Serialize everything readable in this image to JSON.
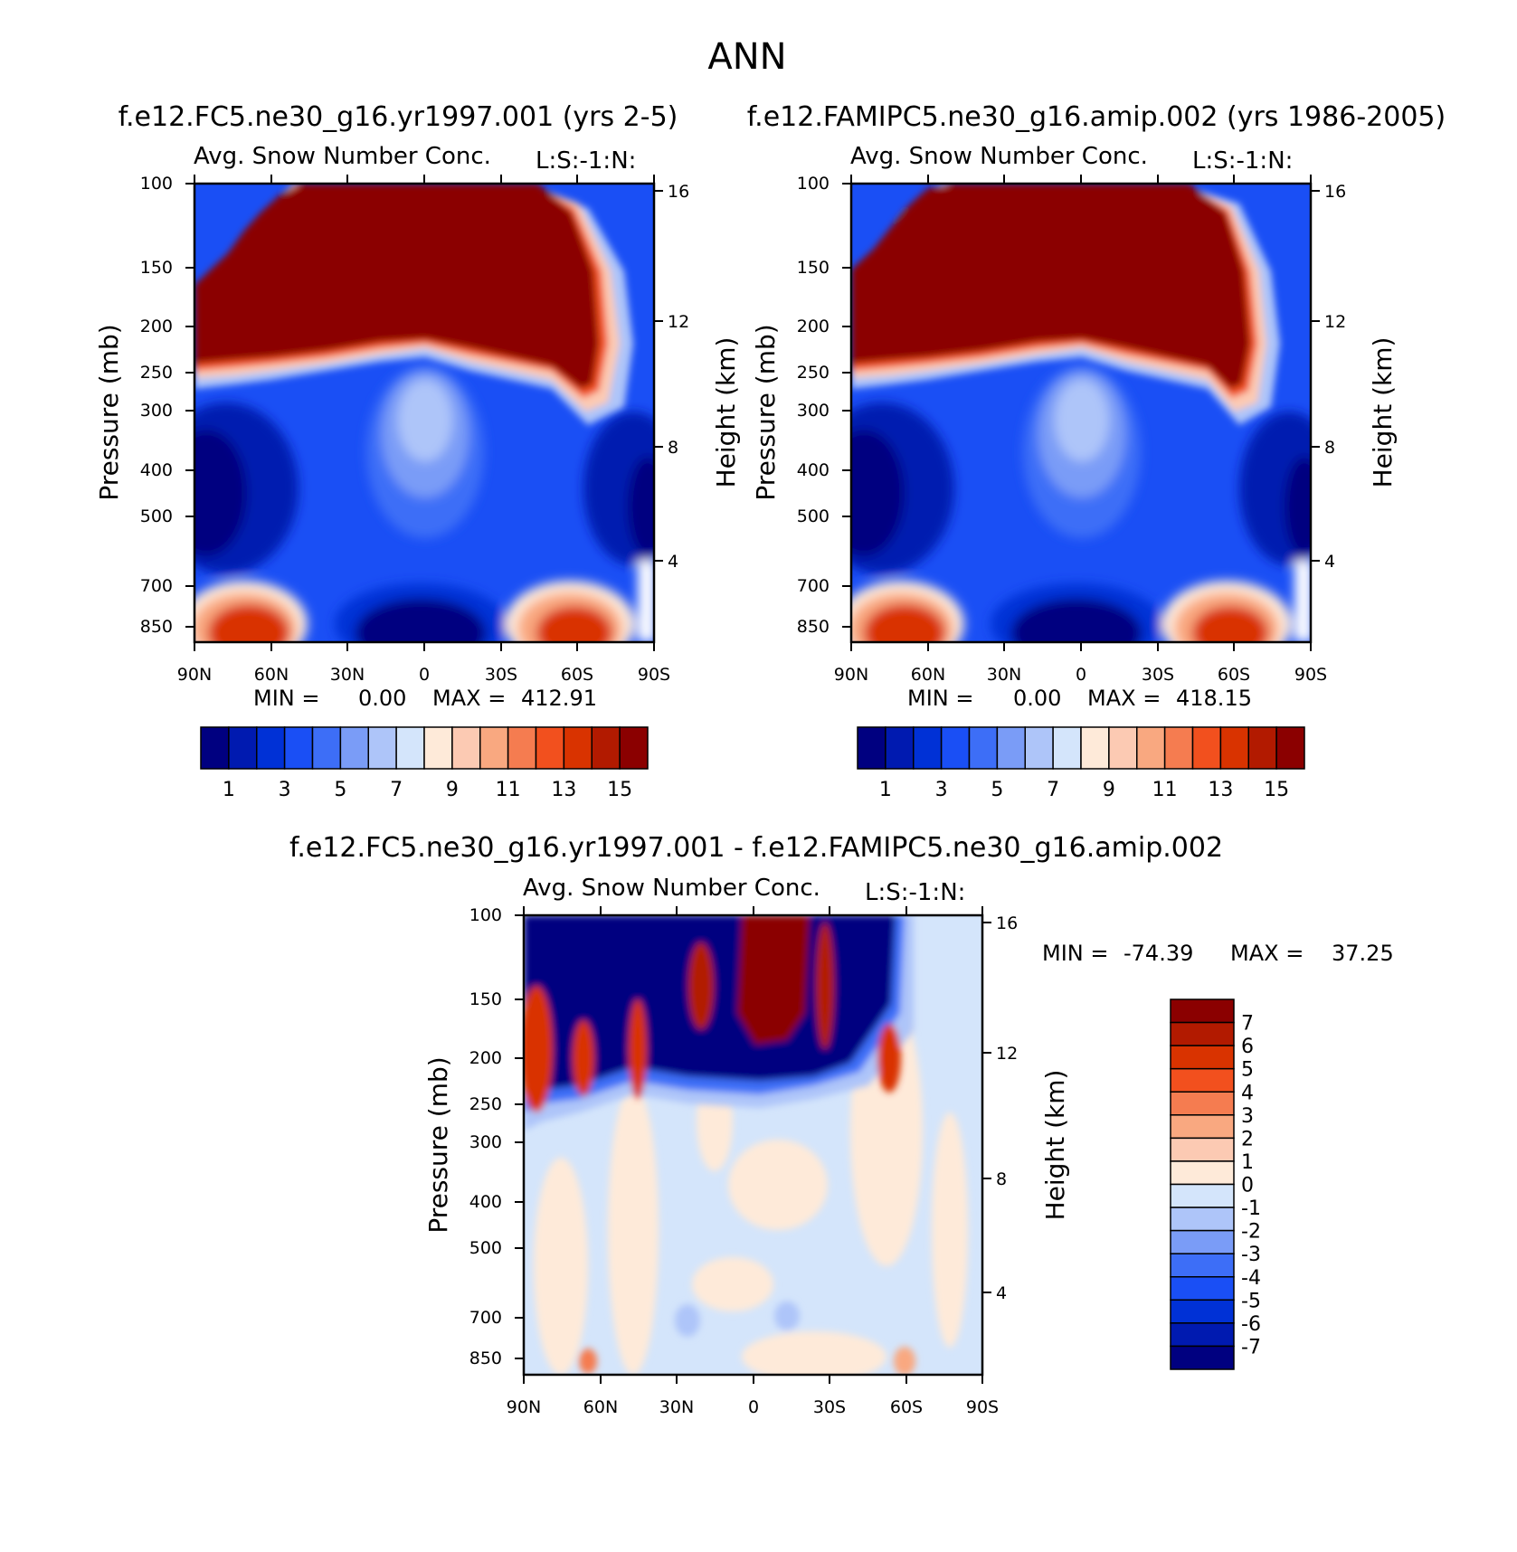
{
  "figure_title": "ANN",
  "chart_data": [
    {
      "type": "heatmap",
      "panel_title": "f.e12.FC5.ne30_g16.yr1997.001 (yrs 2-5)",
      "subtitle": "Avg. Snow Number Conc.",
      "corner_label": "L:S:-1:N:",
      "ylabel": "Pressure (mb)",
      "ylabel_right": "Height (km)",
      "x_ticks": [
        "90N",
        "60N",
        "30N",
        "0",
        "30S",
        "60S",
        "90S"
      ],
      "y_ticks": [
        "100",
        "150",
        "200",
        "250",
        "300",
        "400",
        "500",
        "700",
        "850"
      ],
      "y_ticks_right": [
        "16",
        "12",
        "8",
        "4"
      ],
      "min_label": "MIN =",
      "min_value": "0.00",
      "max_label": "MAX =",
      "max_value": "412.91",
      "colorbar_ticks": [
        "1",
        "3",
        "5",
        "7",
        "9",
        "11",
        "13",
        "15"
      ],
      "colorbar_colors": [
        "#000080",
        "#001ab0",
        "#0031d6",
        "#1a4ff5",
        "#3d6ef7",
        "#7a9cf7",
        "#aec5f9",
        "#d4e5fb",
        "#feead9",
        "#fccab3",
        "#f9a880",
        "#f57c50",
        "#f2501e",
        "#d93300",
        "#b21a00",
        "#8b0000"
      ],
      "grid": false
    },
    {
      "type": "heatmap",
      "panel_title": "f.e12.FAMIPC5.ne30_g16.amip.002 (yrs 1986-2005)",
      "subtitle": "Avg. Snow Number Conc.",
      "corner_label": "L:S:-1:N:",
      "ylabel": "Pressure (mb)",
      "ylabel_right": "Height (km)",
      "x_ticks": [
        "90N",
        "60N",
        "30N",
        "0",
        "30S",
        "60S",
        "90S"
      ],
      "y_ticks": [
        "100",
        "150",
        "200",
        "250",
        "300",
        "400",
        "500",
        "700",
        "850"
      ],
      "y_ticks_right": [
        "16",
        "12",
        "8",
        "4"
      ],
      "min_label": "MIN =",
      "min_value": "0.00",
      "max_label": "MAX =",
      "max_value": "418.15",
      "colorbar_ticks": [
        "1",
        "3",
        "5",
        "7",
        "9",
        "11",
        "13",
        "15"
      ],
      "colorbar_colors": [
        "#000080",
        "#001ab0",
        "#0031d6",
        "#1a4ff5",
        "#3d6ef7",
        "#7a9cf7",
        "#aec5f9",
        "#d4e5fb",
        "#feead9",
        "#fccab3",
        "#f9a880",
        "#f57c50",
        "#f2501e",
        "#d93300",
        "#b21a00",
        "#8b0000"
      ],
      "grid": false
    },
    {
      "type": "heatmap",
      "panel_title": "f.e12.FC5.ne30_g16.yr1997.001 - f.e12.FAMIPC5.ne30_g16.amip.002",
      "subtitle": "Avg. Snow Number Conc.",
      "corner_label": "L:S:-1:N:",
      "ylabel": "Pressure (mb)",
      "ylabel_right": "Height (km)",
      "x_ticks": [
        "90N",
        "60N",
        "30N",
        "0",
        "30S",
        "60S",
        "90S"
      ],
      "y_ticks": [
        "100",
        "150",
        "200",
        "250",
        "300",
        "400",
        "500",
        "700",
        "850"
      ],
      "y_ticks_right": [
        "16",
        "12",
        "8",
        "4"
      ],
      "min_label": "MIN =",
      "min_value": "-74.39",
      "max_label": "MAX =",
      "max_value": "37.25",
      "colorbar_ticks": [
        "7",
        "6",
        "5",
        "4",
        "3",
        "2",
        "1",
        "0",
        "-1",
        "-2",
        "-3",
        "-4",
        "-5",
        "-6",
        "-7"
      ],
      "colorbar_colors": [
        "#8b0000",
        "#b21a00",
        "#d93300",
        "#f2501e",
        "#f57c50",
        "#f9a880",
        "#fccab3",
        "#feead9",
        "#d4e5fb",
        "#aec5f9",
        "#7a9cf7",
        "#3d6ef7",
        "#1a4ff5",
        "#0031d6",
        "#001ab0",
        "#000080"
      ],
      "grid": false
    }
  ]
}
